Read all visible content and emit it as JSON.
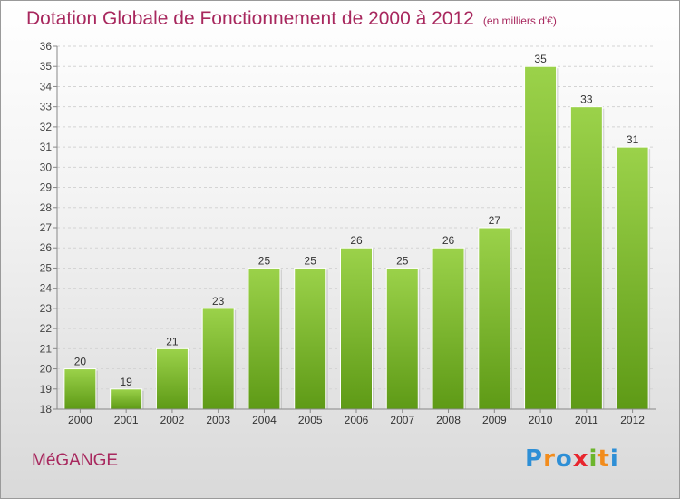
{
  "chart_data": {
    "type": "bar",
    "title": "Dotation Globale de Fonctionnement de 2000 à 2012",
    "subtitle": "(en milliers d'€)",
    "categories": [
      "2000",
      "2001",
      "2002",
      "2003",
      "2004",
      "2005",
      "2006",
      "2007",
      "2008",
      "2009",
      "2010",
      "2011",
      "2012"
    ],
    "values": [
      20,
      19,
      21,
      23,
      25,
      25,
      26,
      25,
      26,
      27,
      35,
      33,
      31
    ],
    "ylim": [
      18,
      36
    ],
    "yticks": [
      18,
      19,
      20,
      21,
      22,
      23,
      24,
      25,
      26,
      27,
      28,
      29,
      30,
      31,
      32,
      33,
      34,
      35,
      36
    ],
    "grid": true,
    "bar_color_top": "#9bd24a",
    "bar_color_bottom": "#5e9a16"
  },
  "footer": {
    "commune": "MéGANGE",
    "brand_letters": [
      "P",
      "r",
      "o",
      "x",
      "i",
      "t",
      "i"
    ],
    "brand_colors": [
      "#2e8fd6",
      "#f28c1c",
      "#2e8fd6",
      "#e8262e",
      "#6cb52d",
      "#f28c1c",
      "#2e8fd6"
    ]
  }
}
